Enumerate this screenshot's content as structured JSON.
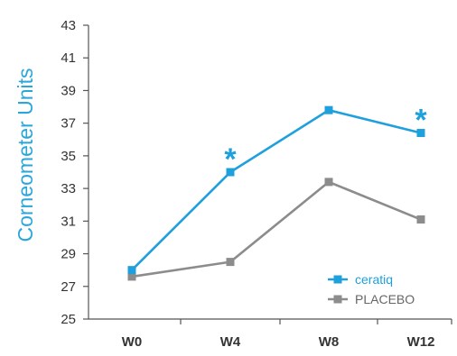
{
  "chart_data": {
    "type": "line",
    "ylabel": "Corneometer Units",
    "xlabel": "",
    "categories": [
      "W0",
      "W4",
      "W8",
      "W12"
    ],
    "ylim": [
      25,
      43
    ],
    "yticks": [
      25,
      27,
      29,
      31,
      33,
      35,
      37,
      39,
      41,
      43
    ],
    "grid": false,
    "legend_position": "bottom-right",
    "series": [
      {
        "name": "ceratiq",
        "values": [
          28.0,
          34.0,
          37.8,
          36.4
        ],
        "color": "#1ea0dc",
        "marker": "square"
      },
      {
        "name": "PLACEBO",
        "values": [
          27.6,
          28.5,
          33.4,
          31.1
        ],
        "color": "#8c8c8c",
        "marker": "square"
      }
    ],
    "annotations": [
      {
        "text": "*",
        "category": "W4",
        "series": "ceratiq",
        "color": "#1ea0dc"
      },
      {
        "text": "*",
        "category": "W12",
        "series": "ceratiq",
        "color": "#1ea0dc"
      }
    ]
  }
}
